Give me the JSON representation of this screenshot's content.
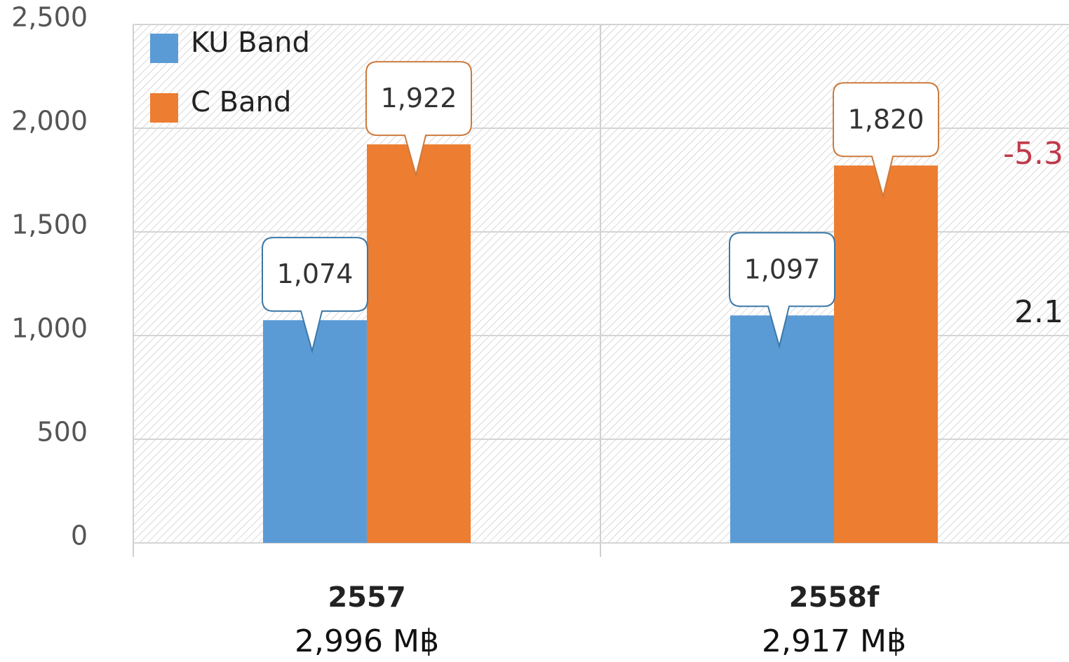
{
  "chart_data": {
    "type": "bar",
    "categories": [
      "2557",
      "2558f"
    ],
    "category_totals": [
      "2,996 M฿",
      "2,917 M฿"
    ],
    "series": [
      {
        "name": "KU Band",
        "color": "#5b9bd5",
        "values": [
          1074,
          1097
        ],
        "value_labels": [
          "1,074",
          "1,097"
        ]
      },
      {
        "name": "C Band",
        "color": "#ed7d31",
        "values": [
          1922,
          1820
        ],
        "value_labels": [
          "1,922",
          "1,820"
        ]
      }
    ],
    "ylim": [
      0,
      2500
    ],
    "yticks": [
      0,
      500,
      {
        "value": 1000,
        "label": "1,000"
      },
      {
        "value": 1500,
        "label": "1,500"
      },
      {
        "value": 2000,
        "label": "2,000"
      },
      {
        "value": 2500,
        "label": "2,500"
      }
    ],
    "grid": true,
    "legend": "top-left",
    "annotations": [
      {
        "text": "-5.3",
        "color": "#c0394b"
      },
      {
        "text": "2.1",
        "color": "#222222"
      }
    ]
  }
}
